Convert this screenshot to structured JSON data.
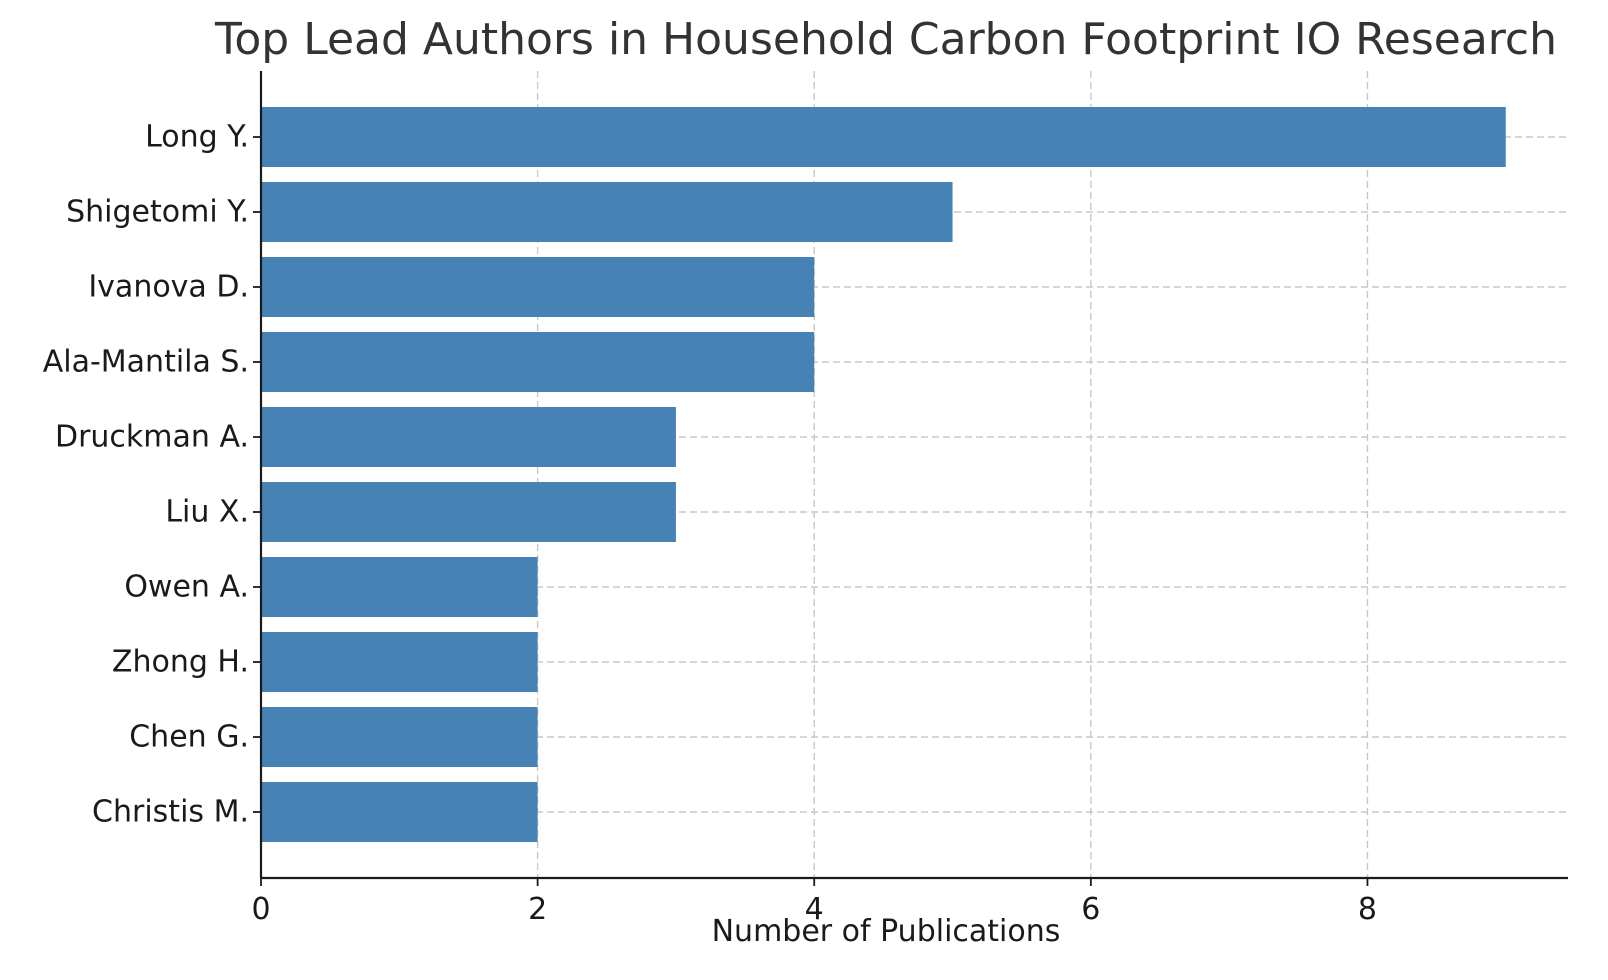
{
  "chart_data": {
    "type": "bar",
    "orientation": "horizontal",
    "title": "Top Lead Authors in Household Carbon Footprint IO Research",
    "xlabel": "Number of Publications",
    "ylabel": "",
    "categories": [
      "Long Y.",
      "Shigetomi Y.",
      "Ivanova D.",
      "Ala-Mantila S.",
      "Druckman A.",
      "Liu X.",
      "Owen A.",
      "Zhong H.",
      "Chen G.",
      "Christis M."
    ],
    "values": [
      9,
      5,
      4,
      4,
      3,
      3,
      2,
      2,
      2,
      2
    ],
    "xlim": [
      0,
      9.45
    ],
    "xticks": [
      0,
      2,
      4,
      6,
      8
    ],
    "xtick_labels": [
      "0",
      "2",
      "4",
      "6",
      "8"
    ],
    "grid": true,
    "bar_color": "#4682b4",
    "grid_color": "#c8c8c8",
    "title_color": "#333333"
  }
}
